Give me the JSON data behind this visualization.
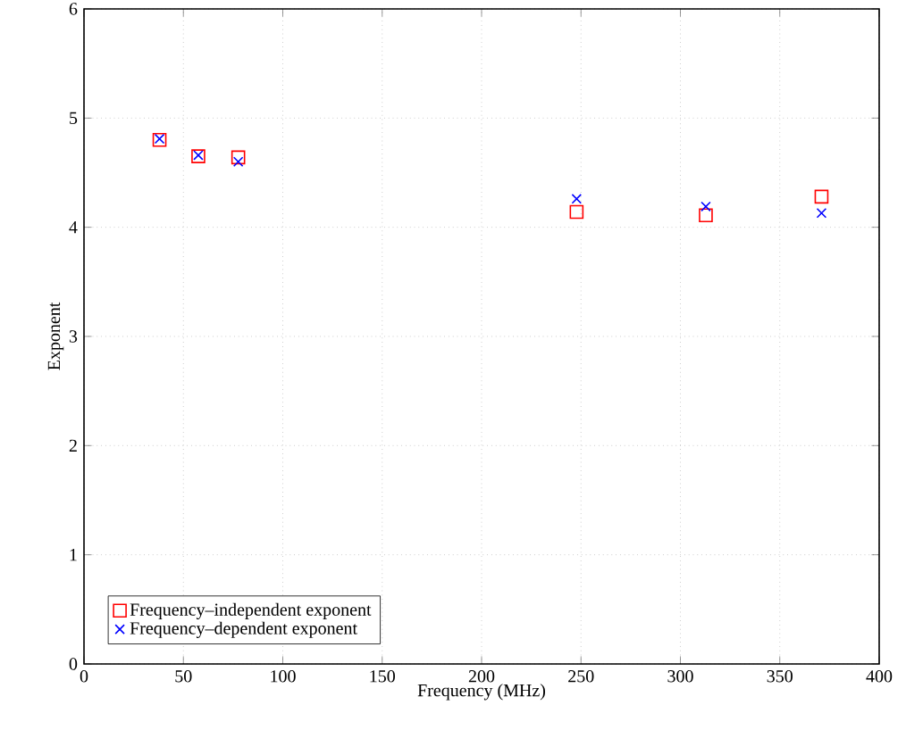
{
  "chart_data": {
    "type": "scatter",
    "xlabel": "Frequency (MHz)",
    "ylabel": "Exponent",
    "xlim": [
      0,
      400
    ],
    "xticks": [
      0,
      50,
      100,
      150,
      200,
      250,
      300,
      350,
      400
    ],
    "ylim": [
      0,
      6
    ],
    "yticks": [
      0,
      1,
      2,
      3,
      4,
      5,
      6
    ],
    "grid": true,
    "legend": "bottom left",
    "series": [
      {
        "name": "Frequency–independent exponent",
        "color": "#ff0000",
        "marker": "square",
        "x": [
          38,
          57.5,
          77.6,
          247.8,
          312.8,
          371
        ],
        "values": [
          4.8,
          4.65,
          4.64,
          4.14,
          4.11,
          4.28
        ]
      },
      {
        "name": "Frequency–dependent exponent",
        "color": "#0000ff",
        "marker": "cross",
        "x": [
          38,
          57.5,
          77.6,
          247.8,
          312.8,
          371
        ],
        "values": [
          4.81,
          4.66,
          4.6,
          4.26,
          4.19,
          4.13
        ]
      }
    ]
  }
}
